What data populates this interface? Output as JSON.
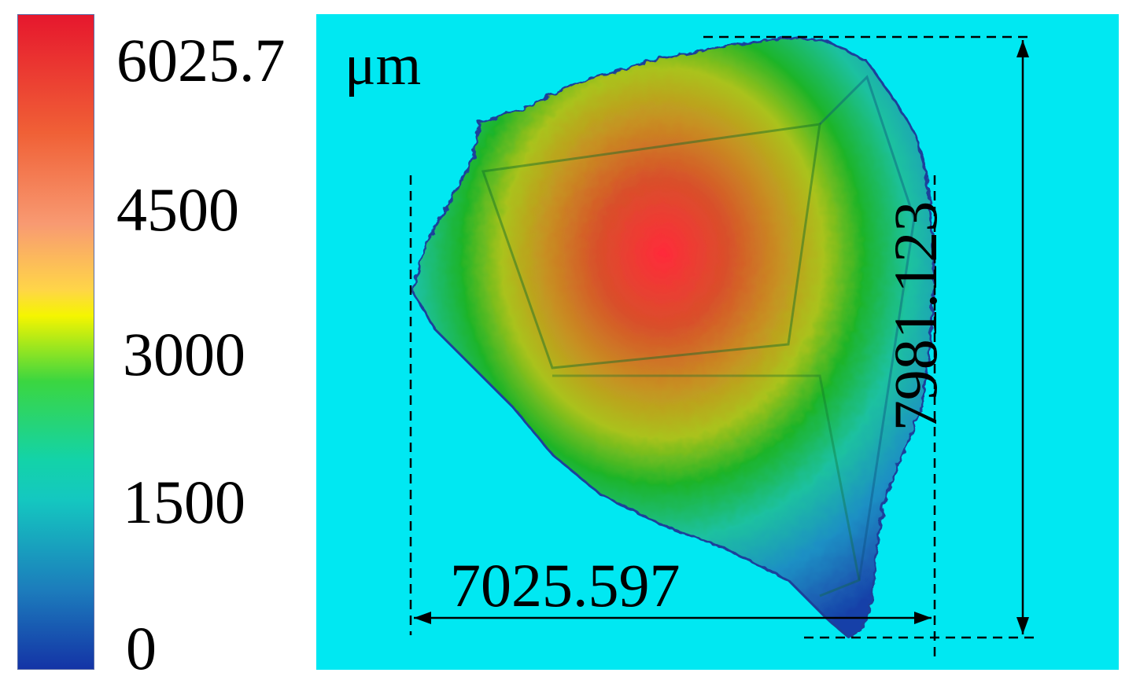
{
  "colorbar": {
    "ticks": [
      "6025.7",
      "4500",
      "3000",
      "1500",
      "0"
    ],
    "colors": [
      "#e8142a",
      "#f8853a",
      "#fff200",
      "#10c65a",
      "#13cfc0",
      "#0f2fae"
    ]
  },
  "viewport": {
    "unit": "μm",
    "width_label": "7025.597",
    "height_label": "7981.123",
    "background_color": "#00e8f2"
  }
}
